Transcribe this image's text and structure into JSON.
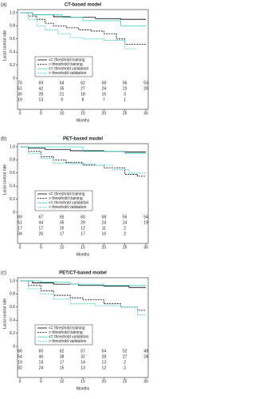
{
  "chart_data": [
    {
      "type": "line",
      "panel": "(a)",
      "title": "CT-based model",
      "ylabel": "Local control rate",
      "xlabel": "Months",
      "xlim": [
        0,
        30
      ],
      "xticks": [
        0,
        5,
        10,
        15,
        20,
        25,
        30
      ],
      "ylim": [
        0,
        1
      ],
      "yticks": [
        0,
        0.2,
        0.4,
        0.6,
        0.8,
        {
          "value": 1,
          "label": "1.0"
        }
      ],
      "step": true,
      "legend": "lower-left",
      "series": [
        {
          "name": "<= threshold training",
          "color": "#000000",
          "style": "solid",
          "x": [
            0,
            3,
            8,
            12,
            18,
            24,
            30
          ],
          "values": [
            1,
            0.97,
            0.94,
            0.93,
            0.91,
            0.9,
            0.9
          ]
        },
        {
          "name": "> threshold training",
          "color": "#000000",
          "style": "dashed",
          "x": [
            0,
            2,
            4,
            6,
            8,
            11,
            14,
            17,
            20,
            23,
            25,
            30
          ],
          "values": [
            1,
            0.95,
            0.9,
            0.84,
            0.8,
            0.77,
            0.74,
            0.72,
            0.68,
            0.6,
            0.52,
            0.52
          ]
        },
        {
          "name": "<= threshold validation",
          "color": "#33cccc",
          "style": "solid",
          "x": [
            0,
            3,
            10,
            15,
            24,
            30
          ],
          "values": [
            1,
            0.97,
            0.93,
            0.88,
            0.8,
            0.8
          ]
        },
        {
          "name": "> threshold validation",
          "color": "#33cccc",
          "style": "dashed",
          "x": [
            0,
            2,
            4,
            6,
            9,
            12,
            15,
            20,
            25,
            28
          ],
          "values": [
            1,
            0.9,
            0.8,
            0.74,
            0.68,
            0.62,
            0.6,
            0.58,
            0.45,
            0.45
          ]
        }
      ],
      "at_risk": [
        [
          70,
          69,
          64,
          62,
          58,
          56,
          53
        ],
        [
          51,
          42,
          35,
          27,
          24,
          23,
          20
        ],
        [
          30,
          28,
          21,
          18,
          16,
          3
        ],
        [
          19,
          13,
          9,
          8,
          7,
          1
        ]
      ]
    },
    {
      "type": "line",
      "panel": "(b)",
      "title": "PET-based model",
      "ylabel": "Local control rate",
      "xlabel": "Months",
      "xlim": [
        0,
        30
      ],
      "xticks": [
        0,
        5,
        10,
        15,
        20,
        25,
        30
      ],
      "ylim": [
        0,
        1
      ],
      "yticks": [
        0,
        0.2,
        0.4,
        0.6,
        0.8,
        {
          "value": 1,
          "label": "1.0"
        }
      ],
      "step": true,
      "legend": "lower-left",
      "series": [
        {
          "name": "<= threshold training",
          "color": "#000000",
          "style": "solid",
          "x": [
            0,
            2,
            6,
            12,
            20,
            25,
            30
          ],
          "values": [
            1,
            0.98,
            0.96,
            0.94,
            0.93,
            0.92,
            0.92
          ]
        },
        {
          "name": "> threshold training",
          "color": "#000000",
          "style": "dashed",
          "x": [
            0,
            2,
            5,
            8,
            11,
            15,
            20,
            25,
            28,
            30
          ],
          "values": [
            1,
            0.93,
            0.85,
            0.8,
            0.76,
            0.72,
            0.68,
            0.58,
            0.55,
            0.55
          ]
        },
        {
          "name": "<= threshold validation",
          "color": "#33cccc",
          "style": "solid",
          "x": [
            0,
            15,
            25,
            30
          ],
          "values": [
            1,
            0.93,
            0.9,
            0.9
          ]
        },
        {
          "name": "> threshold validation",
          "color": "#33cccc",
          "style": "dashed",
          "x": [
            0,
            2,
            5,
            8,
            12,
            18,
            22,
            26,
            30
          ],
          "values": [
            1,
            0.9,
            0.82,
            0.75,
            0.74,
            0.72,
            0.65,
            0.6,
            0.6
          ]
        }
      ],
      "at_risk": [
        [
          69,
          67,
          65,
          60,
          58,
          55,
          54
        ],
        [
          51,
          44,
          35,
          29,
          24,
          24,
          19
        ],
        [
          17,
          17,
          15,
          12,
          11,
          2
        ],
        [
          34,
          26,
          17,
          17,
          16,
          2
        ]
      ]
    },
    {
      "type": "line",
      "panel": "(c)",
      "title": "PET/CT-based model",
      "ylabel": "Local control rate",
      "xlabel": "Months",
      "xlim": [
        0,
        30
      ],
      "xticks": [
        0,
        5,
        10,
        15,
        20,
        25,
        30
      ],
      "ylim": [
        0,
        1
      ],
      "yticks": [
        0,
        0.2,
        0.4,
        0.6,
        0.8,
        {
          "value": 1,
          "label": "1.0"
        }
      ],
      "step": true,
      "legend": "lower-left",
      "series": [
        {
          "name": "<= threshold training",
          "color": "#000000",
          "style": "solid",
          "x": [
            0,
            3,
            8,
            14,
            20,
            26,
            30
          ],
          "values": [
            1,
            0.97,
            0.95,
            0.93,
            0.92,
            0.9,
            0.9
          ]
        },
        {
          "name": "> threshold training",
          "color": "#000000",
          "style": "dashed",
          "x": [
            0,
            2,
            5,
            8,
            12,
            15,
            20,
            24,
            28,
            30
          ],
          "values": [
            1,
            0.93,
            0.85,
            0.78,
            0.74,
            0.71,
            0.65,
            0.6,
            0.55,
            0.55
          ]
        },
        {
          "name": "<= threshold validation",
          "color": "#33cccc",
          "style": "solid",
          "x": [
            0,
            5,
            12,
            20,
            30
          ],
          "values": [
            1,
            0.98,
            0.95,
            0.93,
            0.93
          ]
        },
        {
          "name": "> threshold validation",
          "color": "#33cccc",
          "style": "dashed",
          "x": [
            0,
            2,
            5,
            8,
            12,
            18,
            24,
            28,
            30
          ],
          "values": [
            1,
            0.88,
            0.8,
            0.72,
            0.65,
            0.62,
            0.6,
            0.48,
            0.48
          ]
        }
      ],
      "at_risk": [
        [
          66,
          65,
          62,
          57,
          54,
          52,
          49
        ],
        [
          54,
          46,
          38,
          32,
          28,
          27,
          24
        ],
        [
          19,
          19,
          17,
          14,
          13,
          2
        ],
        [
          32,
          24,
          15,
          13,
          12,
          2
        ]
      ]
    }
  ]
}
